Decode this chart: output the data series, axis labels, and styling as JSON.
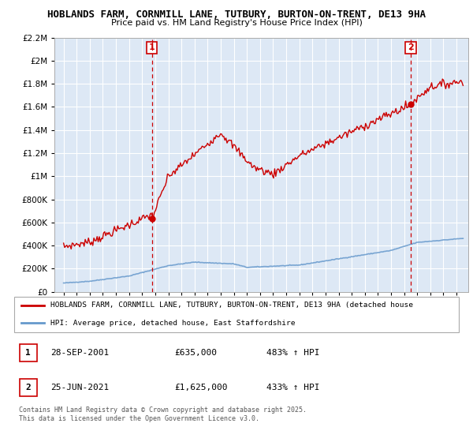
{
  "title_line1": "HOBLANDS FARM, CORNMILL LANE, TUTBURY, BURTON-ON-TRENT, DE13 9HA",
  "title_line2": "Price paid vs. HM Land Registry's House Price Index (HPI)",
  "background_color": "#ffffff",
  "plot_bg_color": "#dde8f5",
  "grid_color": "#ffffff",
  "red_color": "#cc0000",
  "blue_color": "#6699cc",
  "dashed_line_color": "#cc0000",
  "ylim": [
    0,
    2200000
  ],
  "yticks": [
    0,
    200000,
    400000,
    600000,
    800000,
    1000000,
    1200000,
    1400000,
    1600000,
    1800000,
    2000000,
    2200000
  ],
  "ytick_labels": [
    "£0",
    "£200K",
    "£400K",
    "£600K",
    "£800K",
    "£1M",
    "£1.2M",
    "£1.4M",
    "£1.6M",
    "£1.8M",
    "£2M",
    "£2.2M"
  ],
  "year_start": 1995,
  "year_end": 2025,
  "sale1_date": 2001.75,
  "sale1_price": 635000,
  "sale1_label": "1",
  "sale2_date": 2021.5,
  "sale2_price": 1625000,
  "sale2_label": "2",
  "legend_line1": "HOBLANDS FARM, CORNMILL LANE, TUTBURY, BURTON-ON-TRENT, DE13 9HA (detached house",
  "legend_line2": "HPI: Average price, detached house, East Staffordshire",
  "table_row1": [
    "1",
    "28-SEP-2001",
    "£635,000",
    "483% ↑ HPI"
  ],
  "table_row2": [
    "2",
    "25-JUN-2021",
    "£1,625,000",
    "433% ↑ HPI"
  ],
  "footer": "Contains HM Land Registry data © Crown copyright and database right 2025.\nThis data is licensed under the Open Government Licence v3.0."
}
